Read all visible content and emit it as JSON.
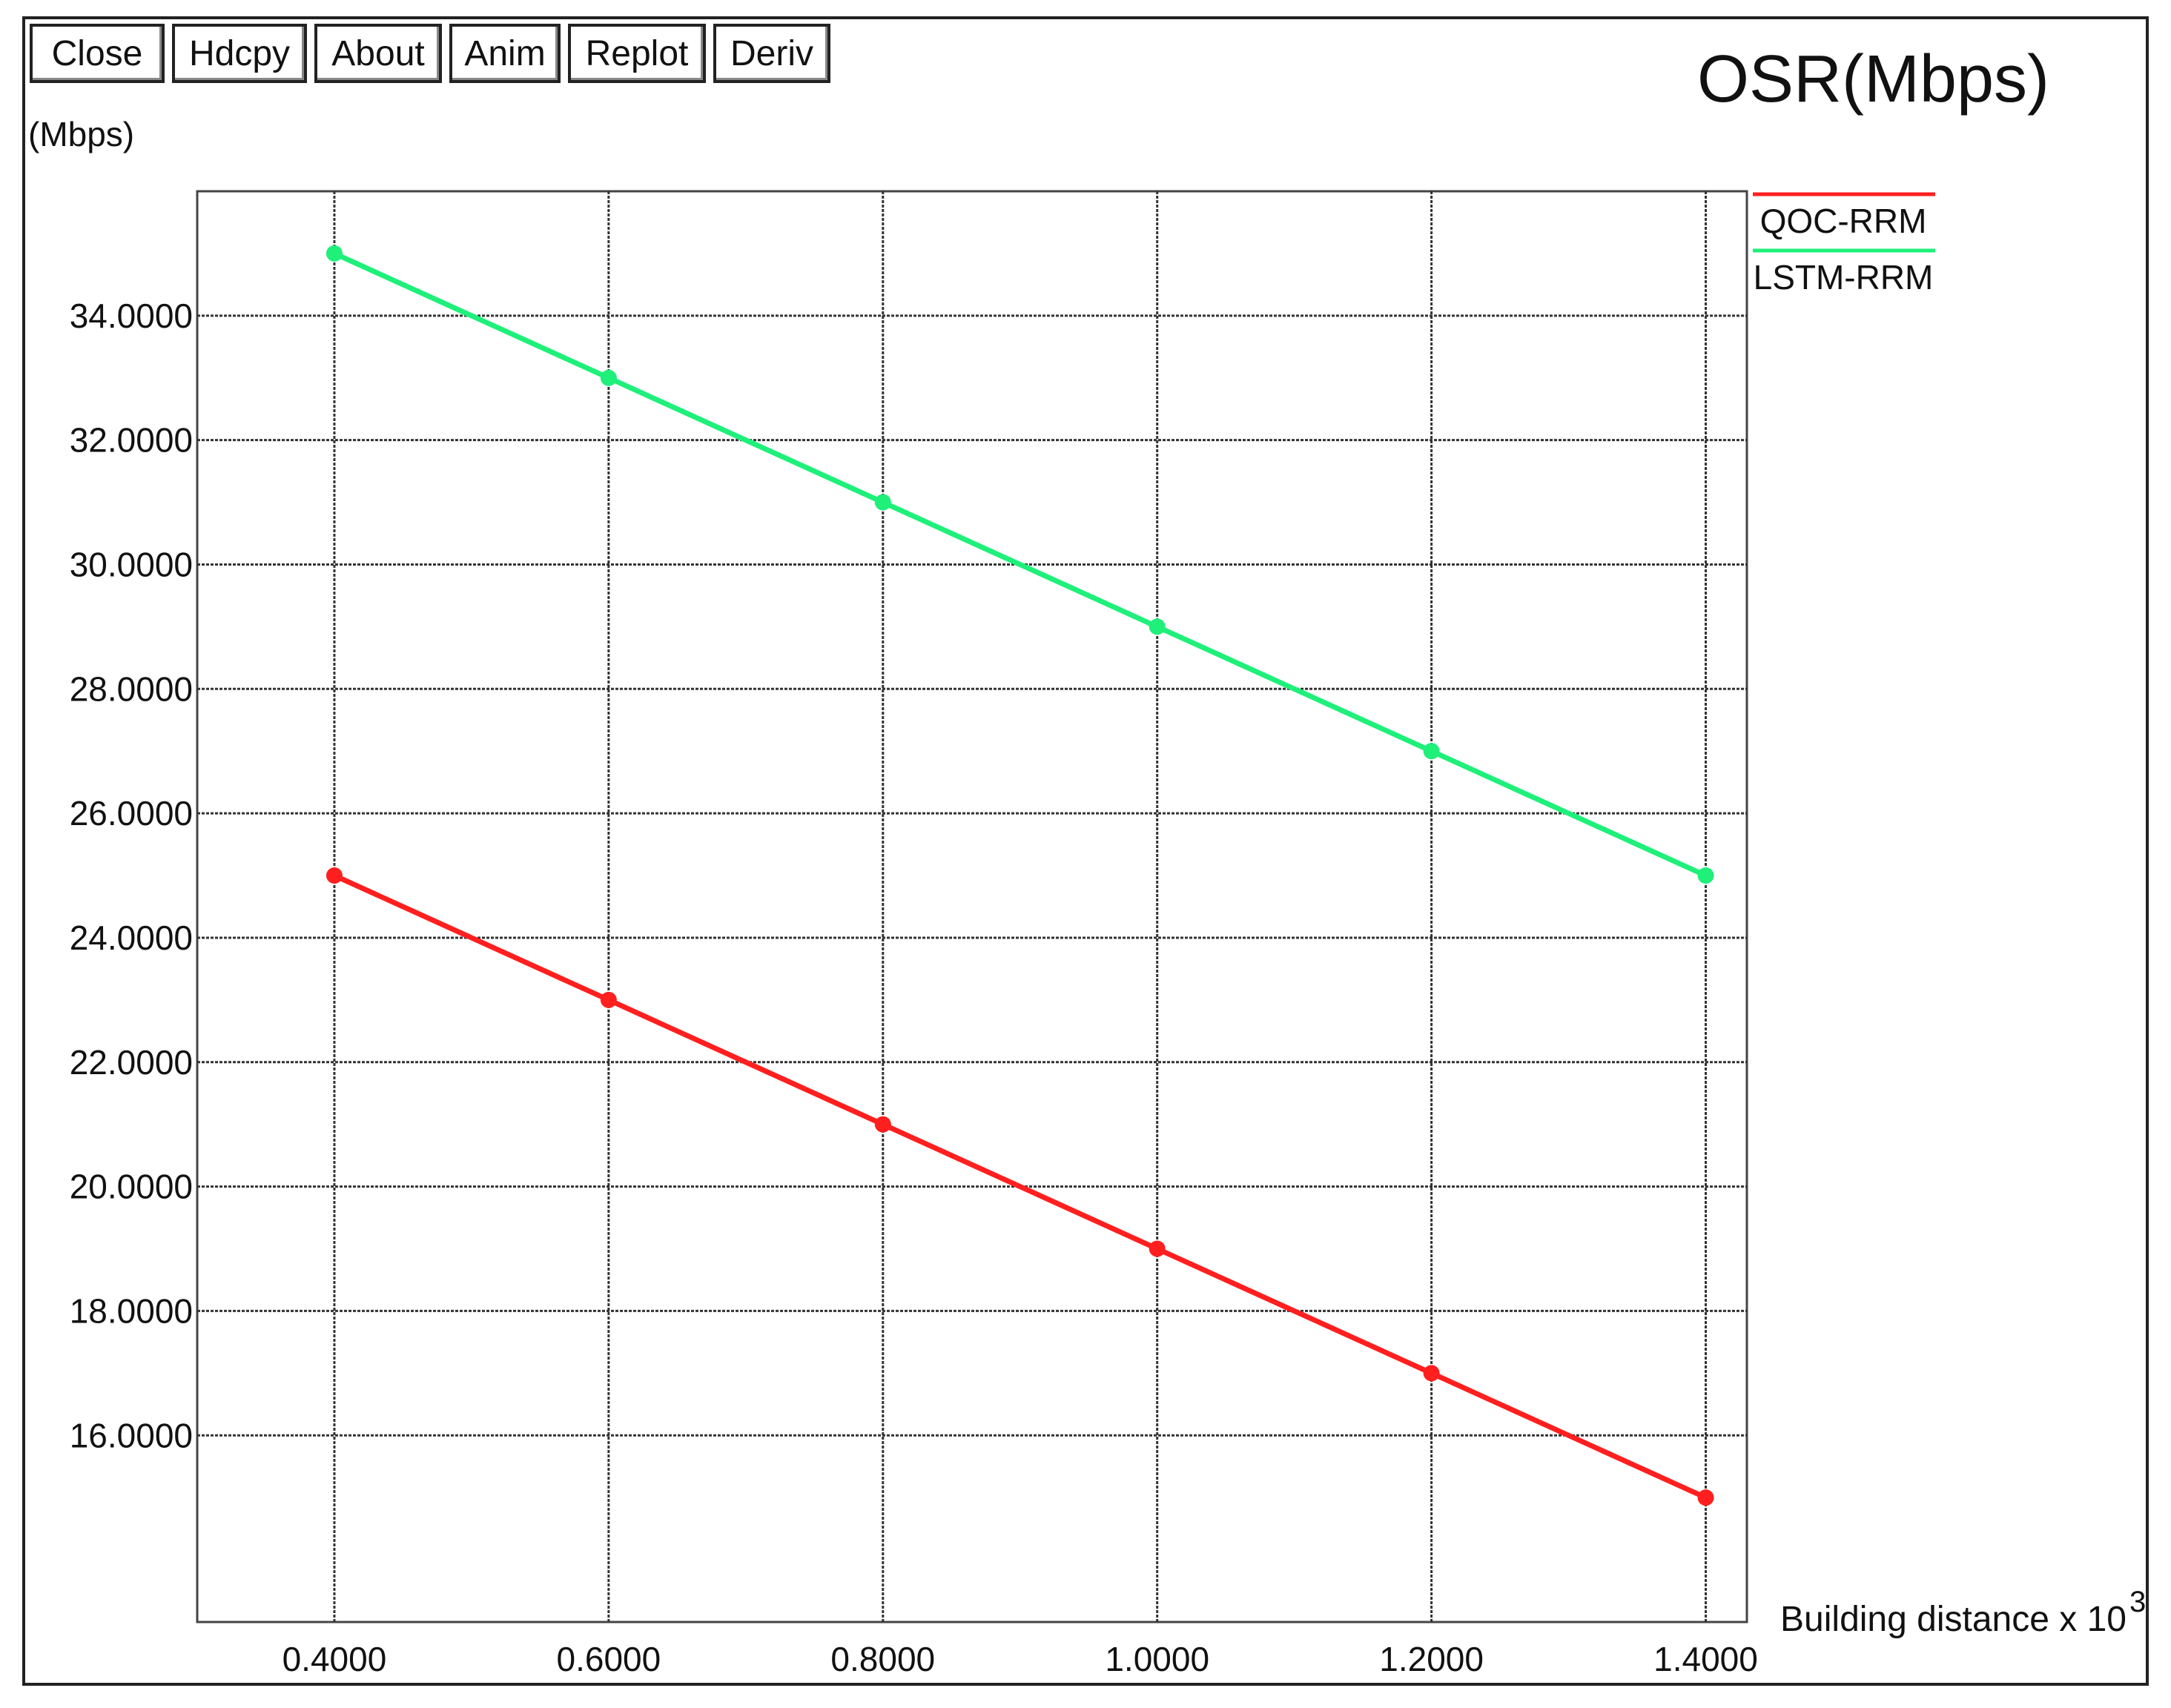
{
  "toolbar": {
    "buttons": [
      "Close",
      "Hdcpy",
      "About",
      "Anim",
      "Replot",
      "Deriv"
    ]
  },
  "chart_data": {
    "type": "line",
    "title": "OSR(Mbps)",
    "ylabel": "(Mbps)",
    "xlabel": "Building distance x 10",
    "xlabel_exponent": "3",
    "x": [
      0.4,
      0.6,
      0.8,
      1.0,
      1.2,
      1.4
    ],
    "x_tick_labels": [
      "0.4000",
      "0.6000",
      "0.8000",
      "1.0000",
      "1.2000",
      "1.4000"
    ],
    "y_tick_values": [
      16,
      18,
      20,
      22,
      24,
      26,
      28,
      30,
      32,
      34
    ],
    "y_tick_labels": [
      "16.0000",
      "18.0000",
      "20.0000",
      "22.0000",
      "24.0000",
      "26.0000",
      "28.0000",
      "30.0000",
      "32.0000",
      "34.0000"
    ],
    "xlim": [
      0.3,
      1.43
    ],
    "ylim": [
      13.0,
      36.0
    ],
    "grid": true,
    "legend_position": "top-right",
    "series": [
      {
        "name": "QOC-RRM",
        "color": "#ff1f1f",
        "values": [
          25,
          23,
          21,
          19,
          17,
          15
        ]
      },
      {
        "name": "LSTM-RRM",
        "color": "#1ef07a",
        "values": [
          35,
          33,
          31,
          29,
          27,
          25
        ]
      }
    ]
  }
}
